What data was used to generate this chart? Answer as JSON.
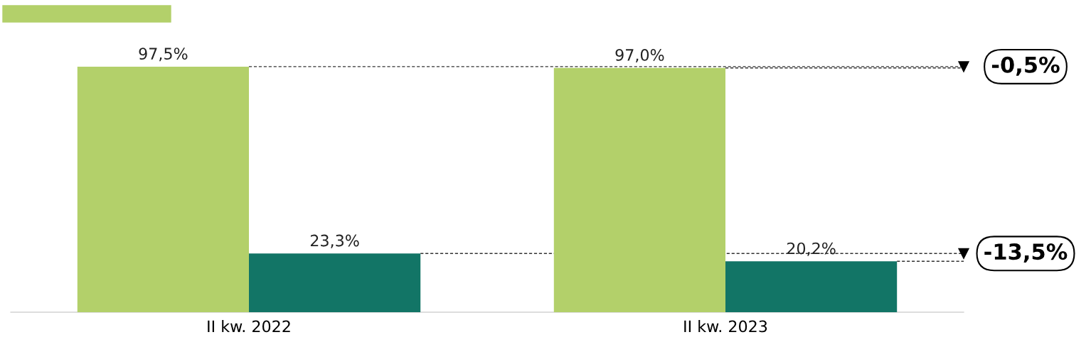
{
  "chart_data": {
    "type": "bar",
    "categories": [
      "II kw. 2022",
      "II kw. 2023"
    ],
    "series": [
      {
        "color": "#b3d06a",
        "values": [
          97.5,
          97.0
        ],
        "value_labels": [
          "97,5%",
          "97,0%"
        ]
      },
      {
        "color": "#127566",
        "values": [
          23.3,
          20.2
        ],
        "value_labels": [
          "23,3%",
          "20,2%"
        ]
      }
    ],
    "annotations": [
      "-0,5%",
      "-13,5%"
    ]
  }
}
